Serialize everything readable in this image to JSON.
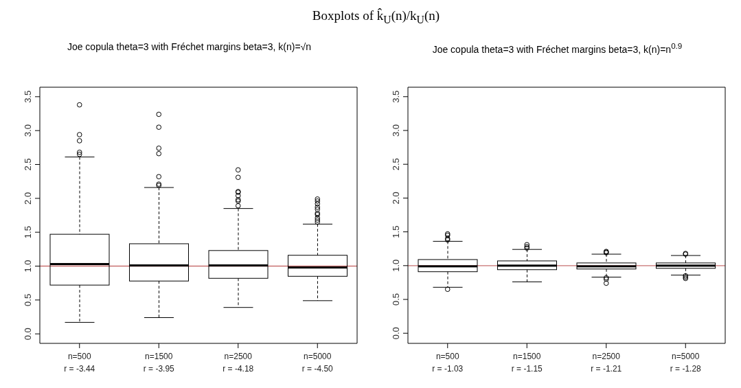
{
  "chart_data": [
    {
      "type": "box",
      "title": "Boxplots of k̂$_{U}$(n)/k$_{U}$(n)",
      "subtitle": "Joe copula theta=3 with Fréchet margins beta=3, k(n)=√n",
      "categories": [
        "n=500\nr = -3.44",
        "n=1500\nr = -3.95",
        "n=2500\nr = -4.18",
        "n=5000\nr = -4.50"
      ],
      "boxes": [
        {
          "low": 0.17,
          "q1": 0.72,
          "median": 1.03,
          "q3": 1.47,
          "high": 2.61,
          "outliers": [
            3.38,
            2.94,
            2.85,
            2.68,
            2.65
          ]
        },
        {
          "low": 0.24,
          "q1": 0.78,
          "median": 1.01,
          "q3": 1.33,
          "high": 2.16,
          "outliers": [
            3.24,
            3.05,
            2.74,
            2.66,
            2.32,
            2.21,
            2.19
          ]
        },
        {
          "low": 0.39,
          "q1": 0.82,
          "median": 1.01,
          "q3": 1.23,
          "high": 1.85,
          "outliers": [
            2.42,
            2.31,
            2.1,
            2.09,
            2.04,
            1.98,
            1.96,
            1.89
          ]
        },
        {
          "low": 0.49,
          "q1": 0.85,
          "median": 0.98,
          "q3": 1.16,
          "high": 1.62,
          "outliers": [
            1.99,
            1.96,
            1.92,
            1.87,
            1.84,
            1.78,
            1.76,
            1.71,
            1.68,
            1.65
          ]
        }
      ],
      "ylim": [
        -0.14,
        3.64
      ],
      "yticks": [
        {
          "value": 0,
          "label": "0.0"
        },
        {
          "value": 0.5,
          "label": "0.5"
        },
        {
          "value": 1,
          "label": "1.0"
        },
        {
          "value": 1.5,
          "label": "1.5"
        },
        {
          "value": 2,
          "label": "2.0"
        },
        {
          "value": 2.5,
          "label": "2.5"
        },
        {
          "value": 3,
          "label": "3.0"
        },
        {
          "value": 3.5,
          "label": "3.5"
        }
      ],
      "ref_lines": [
        {
          "axis": "y",
          "value": 1,
          "color": "#c87070"
        }
      ],
      "grid": false,
      "legend": false
    },
    {
      "type": "box",
      "subtitle": "Joe copula theta=3 with Fréchet margins beta=3, k(n)=n$^{0.9}$",
      "categories": [
        "n=500\nr = -1.03",
        "n=1500\nr = -1.15",
        "n=2500\nr = -1.21",
        "n=5000\nr = -1.28"
      ],
      "boxes": [
        {
          "low": 0.68,
          "q1": 0.91,
          "median": 0.99,
          "q3": 1.09,
          "high": 1.36,
          "outliers": [
            1.47,
            1.45,
            1.4,
            1.38,
            0.65
          ]
        },
        {
          "low": 0.76,
          "q1": 0.94,
          "median": 1.0,
          "q3": 1.07,
          "high": 1.24,
          "outliers": [
            1.31,
            1.28,
            1.26
          ]
        },
        {
          "low": 0.83,
          "q1": 0.95,
          "median": 0.99,
          "q3": 1.04,
          "high": 1.17,
          "outliers": [
            1.21,
            1.2,
            1.19,
            0.82,
            0.8,
            0.74
          ]
        },
        {
          "low": 0.86,
          "q1": 0.96,
          "median": 1.0,
          "q3": 1.04,
          "high": 1.15,
          "outliers": [
            1.18,
            1.17,
            0.85,
            0.83,
            0.81
          ]
        }
      ],
      "ylim": [
        -0.15,
        3.64
      ],
      "yticks": [
        {
          "value": 0,
          "label": "0.0"
        },
        {
          "value": 0.5,
          "label": "0.5"
        },
        {
          "value": 1,
          "label": "1.0"
        },
        {
          "value": 1.5,
          "label": "1.5"
        },
        {
          "value": 2,
          "label": "2.0"
        },
        {
          "value": 2.5,
          "label": "2.5"
        },
        {
          "value": 3,
          "label": "3.0"
        },
        {
          "value": 3.5,
          "label": "3.5"
        }
      ],
      "ref_lines": [
        {
          "axis": "y",
          "value": 1,
          "color": "#c87070"
        }
      ],
      "grid": false,
      "legend": false
    }
  ]
}
